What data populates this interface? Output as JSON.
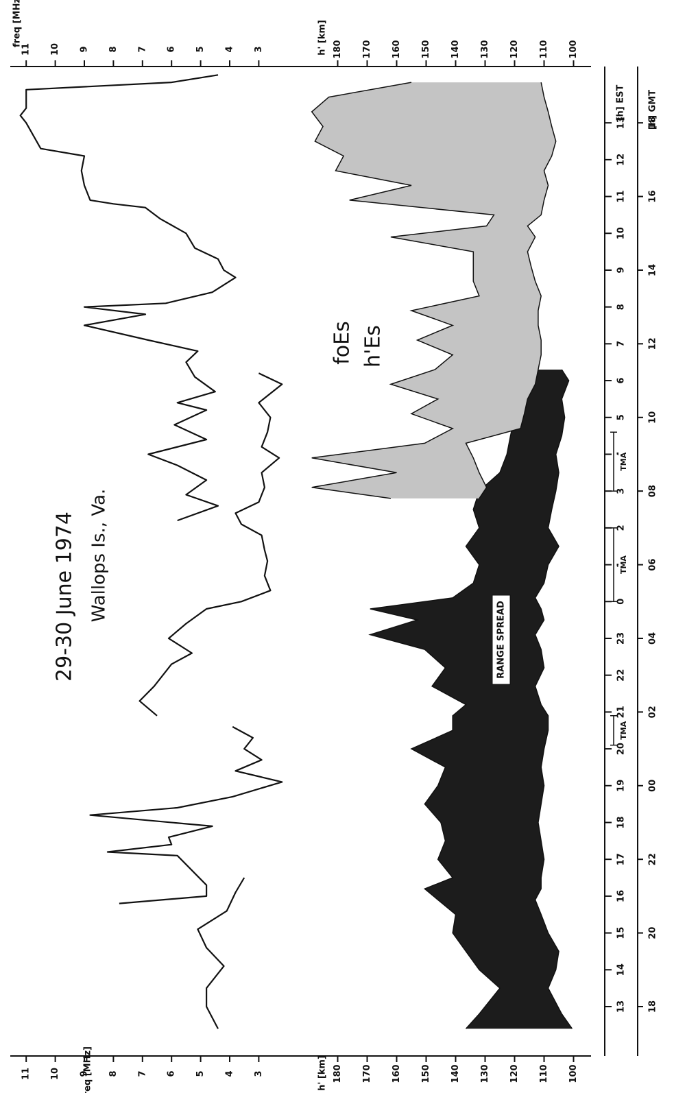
{
  "chart_data": {
    "type": "line",
    "title": "29-30 June 1974",
    "subtitle": "Wallops Is., Va.",
    "x_label": "[h] EST",
    "x2_label": "[h] GMT",
    "y_label": "freq [MHz]",
    "y2_label": "h' [km]",
    "xlim": [
      12,
      38.5
    ],
    "xticks": [
      13,
      14,
      15,
      16,
      17,
      18,
      19,
      20,
      21,
      22,
      23,
      {
        "value": 24,
        "label": "0"
      },
      {
        "value": 25,
        "label": "1"
      },
      {
        "value": 26,
        "label": "2"
      },
      {
        "value": 27,
        "label": "3"
      },
      {
        "value": 28,
        "label": "4"
      },
      {
        "value": 29,
        "label": "5"
      },
      {
        "value": 30,
        "label": "6"
      },
      {
        "value": 31,
        "label": "7"
      },
      {
        "value": 32,
        "label": "8"
      },
      {
        "value": 33,
        "label": "9"
      },
      {
        "value": 34,
        "label": "10"
      },
      {
        "value": 35,
        "label": "11"
      },
      {
        "value": 36,
        "label": "12"
      },
      {
        "value": 37,
        "label": "13"
      }
    ],
    "x2ticks": [
      {
        "value": 13,
        "label": "18"
      },
      {
        "value": 15,
        "label": "20"
      },
      {
        "value": 17,
        "label": "22"
      },
      {
        "value": 19,
        "label": "00"
      },
      {
        "value": 21,
        "label": "02"
      },
      {
        "value": 23,
        "label": "04"
      },
      {
        "value": 25,
        "label": "06"
      },
      {
        "value": 27,
        "label": "08"
      },
      {
        "value": 29,
        "label": "10"
      },
      {
        "value": 31,
        "label": "12"
      },
      {
        "value": 33,
        "label": "14"
      },
      {
        "value": 35,
        "label": "16"
      },
      {
        "value": 37,
        "label": "18"
      }
    ],
    "ylim": [
      11.5,
      1.5
    ],
    "yticks": [
      11,
      10,
      9,
      8,
      7,
      6,
      5,
      4,
      3
    ],
    "y2lim": [
      185,
      95
    ],
    "y2ticks": [
      180,
      170,
      160,
      150,
      140,
      130,
      120,
      110,
      100
    ],
    "series": [
      {
        "name": "foEs",
        "color": "#111111",
        "x": [
          12.4,
          13.0,
          13.5,
          14.1,
          14.6,
          15.1,
          15.6,
          16.1,
          16.5,
          null,
          15.8,
          16.0,
          16.3,
          16.7,
          17.1,
          17.2,
          17.4,
          17.6,
          17.9,
          18.2,
          18.4,
          18.7,
          19.1,
          19.4,
          19.7,
          20.0,
          20.3,
          20.6,
          null,
          20.9,
          21.3,
          21.7,
          22.3,
          22.6,
          23.0,
          23.4,
          23.8,
          24.0,
          24.3,
          24.7,
          25.1,
          25.4,
          25.8,
          26.1,
          26.4,
          26.7,
          27.1,
          27.5,
          27.9,
          28.2,
          28.6,
          29.0,
          29.4,
          29.9,
          30.2,
          null,
          26.2,
          26.6,
          26.9,
          27.3,
          27.7,
          28.0,
          28.4,
          28.8,
          29.2,
          29.4,
          29.7,
          30.1,
          30.5,
          30.8,
          31.1,
          31.5,
          31.8,
          32.0,
          32.1,
          32.4,
          32.8,
          33.0,
          33.3,
          33.6,
          34.0,
          34.4,
          34.7,
          34.8,
          34.9,
          35.3,
          35.7,
          36.1,
          36.3,
          37.0,
          37.2,
          37.4,
          37.9,
          38.1,
          38.3
        ],
        "values": [
          4.4,
          4.8,
          4.8,
          4.2,
          4.8,
          5.1,
          4.1,
          3.8,
          3.5,
          null,
          7.8,
          4.8,
          4.8,
          5.3,
          5.8,
          8.2,
          6.0,
          6.1,
          4.6,
          8.8,
          5.8,
          3.9,
          2.2,
          3.8,
          2.9,
          3.5,
          3.2,
          3.9,
          null,
          6.5,
          7.1,
          6.6,
          6.0,
          5.3,
          6.1,
          5.5,
          4.8,
          3.6,
          2.6,
          2.8,
          2.7,
          2.8,
          2.9,
          3.6,
          3.8,
          3.0,
          2.8,
          2.9,
          2.3,
          2.9,
          2.7,
          2.6,
          3.0,
          2.2,
          3.0,
          null,
          5.8,
          4.4,
          5.5,
          4.8,
          5.8,
          6.8,
          4.8,
          5.9,
          4.8,
          5.8,
          4.5,
          5.2,
          5.5,
          5.1,
          6.8,
          9.0,
          6.9,
          9.0,
          6.2,
          4.6,
          3.8,
          4.2,
          4.4,
          5.2,
          5.5,
          6.4,
          6.9,
          8.0,
          8.8,
          9.0,
          9.1,
          9.0,
          10.5,
          11.0,
          11.2,
          11.0,
          11.0,
          6.0,
          4.4
        ]
      },
      {
        "axis": "y2",
        "color": "#1c1c1c",
        "x": [
          12.4,
          12.8,
          13.5,
          14.0,
          14.5,
          15.0,
          15.5,
          15.9,
          16.2,
          16.5,
          17.0,
          17.5,
          18.0,
          18.5,
          19.0,
          19.5,
          20.0,
          20.5,
          20.9,
          21.2,
          21.7,
          22.2,
          22.7,
          23.1,
          23.5,
          23.8,
          24.1,
          24.5,
          25.0,
          25.5,
          26.0,
          26.5,
          27.0,
          27.5,
          28.0,
          28.5,
          29.0,
          29.5,
          30.0,
          30.3
        ],
        "lower": [
          100.5,
          104,
          108.6,
          106,
          105,
          108.6,
          111,
          113,
          111,
          111,
          110,
          111,
          112,
          111,
          110,
          111,
          110,
          108.6,
          108.6,
          111,
          113,
          110,
          111,
          113,
          110,
          111,
          113,
          110,
          108.6,
          105,
          108.6,
          107.4,
          106,
          105,
          106,
          104,
          103,
          104,
          101.6,
          104
        ],
        "values": [
          136.5,
          132,
          125,
          132,
          136.5,
          141,
          140,
          146,
          150.5,
          141,
          146,
          143.5,
          145,
          150.5,
          146,
          143.5,
          155,
          141,
          141,
          136.5,
          148,
          143.5,
          150.5,
          169,
          153,
          169,
          141,
          134,
          132,
          136.5,
          132,
          134,
          132,
          125,
          122.6,
          121.4,
          120,
          118,
          116.7,
          113
        ]
      },
      {
        "name": "h'Es",
        "axis": "y2",
        "color": "#c4c4c4",
        "x": [
          26.8,
          27.1,
          27.5,
          27.9,
          28.3,
          28.7,
          29.1,
          29.5,
          29.9,
          30.3,
          30.7,
          31.1,
          31.5,
          31.9,
          32.3,
          32.7,
          33.1,
          33.5,
          33.9,
          34.2,
          34.5,
          34.9,
          35.3,
          35.7,
          36.1,
          36.5,
          36.9,
          37.3,
          37.7,
          38.1
        ],
        "lower": [
          132,
          129.5,
          132,
          134,
          136.5,
          118,
          116.7,
          115.6,
          113,
          112,
          111,
          111,
          112,
          112,
          111,
          113,
          114.4,
          115.6,
          113,
          115.6,
          111,
          110,
          108.6,
          110,
          107.4,
          106,
          107.4,
          108.6,
          110,
          111
        ],
        "values": [
          162,
          188.8,
          160,
          188.8,
          150.5,
          141,
          155,
          146,
          162,
          147,
          141,
          153,
          141,
          155,
          132,
          134,
          134,
          134,
          162,
          129.5,
          127,
          176,
          155,
          180.7,
          178,
          187.7,
          185,
          188.8,
          183,
          155
        ]
      }
    ],
    "annotations": [
      {
        "text": "RANGE SPREAD"
      },
      {
        "text": "TMA",
        "x": [
          20.1,
          20.9
        ]
      },
      {
        "text": "TMA",
        "x": [
          24.0,
          26.0
        ]
      },
      {
        "text": "TMA",
        "x": [
          27.0,
          28.6
        ]
      }
    ]
  }
}
